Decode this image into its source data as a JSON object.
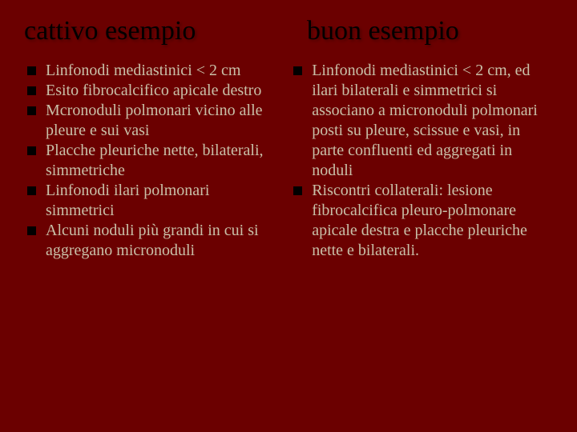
{
  "background_color": "#6b0000",
  "text_color": "#c9c0a8",
  "heading_color": "#000000",
  "bullet_color": "#000000",
  "heading_fontsize": 34,
  "body_fontsize": 20,
  "left": {
    "title": "cattivo esempio",
    "items": [
      "Linfonodi mediastinici < 2 cm",
      "Esito fibrocalcifico apicale destro",
      "Mcronoduli polmonari vicino alle pleure  e sui vasi",
      "Placche pleuriche nette, bilaterali, simmetriche",
      "Linfonodi ilari polmonari simmetrici",
      "Alcuni noduli più grandi in cui si aggregano micronoduli"
    ]
  },
  "right": {
    "title": "buon esempio",
    "items": [
      "Linfonodi mediastinici < 2 cm, ed ilari bilaterali e simmetrici si associano a micronoduli polmonari posti su pleure, scissue e vasi, in parte confluenti ed aggregati in noduli",
      "Riscontri collaterali: lesione fibrocalcifica pleuro-polmonare apicale destra e placche pleuriche nette e bilaterali."
    ]
  }
}
